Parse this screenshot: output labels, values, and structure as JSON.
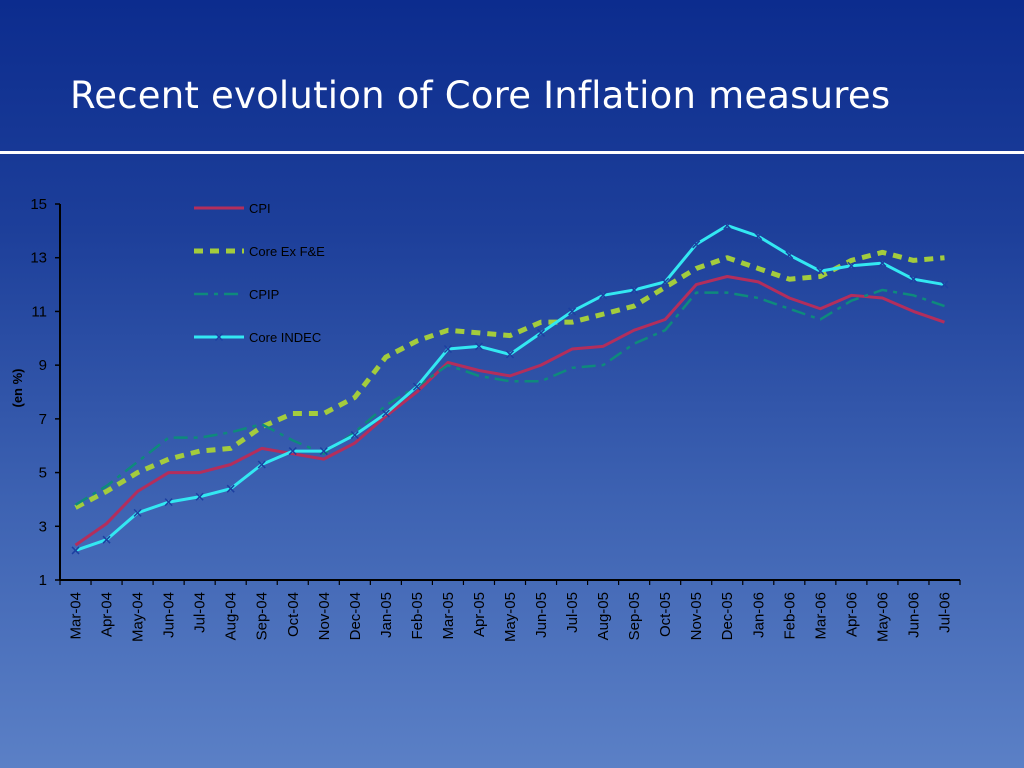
{
  "slide": {
    "title": "Recent evolution of Core Inflation measures"
  },
  "colors": {
    "cpi": "#b32e5c",
    "core_ex_fe": "#a3cc3d",
    "cpip": "#0e8a7c",
    "core_indec": "#33e8f2",
    "axis": "#000000"
  },
  "chart_data": {
    "type": "line",
    "title": "",
    "xlabel": "",
    "ylabel": "(en %)",
    "ylim": [
      1,
      15
    ],
    "yticks": [
      1,
      3,
      5,
      7,
      9,
      11,
      13,
      15
    ],
    "grid": false,
    "legend_position": "top-left inside plot",
    "categories": [
      "Mar-04",
      "Apr-04",
      "May-04",
      "Jun-04",
      "Jul-04",
      "Aug-04",
      "Sep-04",
      "Oct-04",
      "Nov-04",
      "Dec-04",
      "Jan-05",
      "Feb-05",
      "Mar-05",
      "Apr-05",
      "May-05",
      "Jun-05",
      "Jul-05",
      "Aug-05",
      "Sep-05",
      "Oct-05",
      "Nov-05",
      "Dec-05",
      "Jan-06",
      "Feb-06",
      "Mar-06",
      "Apr-06",
      "May-06",
      "Jun-06",
      "Jul-06"
    ],
    "series": [
      {
        "name": "CPI",
        "color": "#b32e5c",
        "style": "solid",
        "values": [
          2.3,
          3.1,
          4.3,
          5.0,
          5.0,
          5.3,
          5.9,
          5.7,
          5.5,
          6.1,
          7.1,
          8.0,
          9.1,
          8.8,
          8.6,
          9.0,
          9.6,
          9.7,
          10.3,
          10.7,
          12.0,
          12.3,
          12.1,
          11.5,
          11.1,
          11.6,
          11.5,
          11.0,
          10.6
        ]
      },
      {
        "name": "Core Ex F&E",
        "color": "#a3cc3d",
        "style": "dashed",
        "values": [
          3.7,
          4.3,
          5.0,
          5.5,
          5.8,
          5.9,
          6.7,
          7.2,
          7.2,
          7.8,
          9.3,
          9.9,
          10.3,
          10.2,
          10.1,
          10.6,
          10.6,
          10.9,
          11.2,
          11.9,
          12.6,
          13.0,
          12.6,
          12.2,
          12.3,
          12.9,
          13.2,
          12.9,
          13.0
        ]
      },
      {
        "name": "CPIP",
        "color": "#0e8a7c",
        "style": "dashdot",
        "values": [
          3.8,
          4.5,
          5.4,
          6.3,
          6.3,
          6.5,
          6.8,
          6.2,
          5.7,
          6.5,
          7.5,
          8.2,
          9.0,
          8.6,
          8.4,
          8.4,
          8.9,
          9.0,
          9.8,
          10.3,
          11.7,
          11.7,
          11.5,
          11.1,
          10.7,
          11.4,
          11.8,
          11.6,
          11.2
        ]
      },
      {
        "name": "Core INDEC",
        "color": "#33e8f2",
        "style": "solid-x-markers",
        "values": [
          2.1,
          2.5,
          3.5,
          3.9,
          4.1,
          4.4,
          5.3,
          5.8,
          5.8,
          6.4,
          7.2,
          8.2,
          9.6,
          9.7,
          9.4,
          10.2,
          11.0,
          11.6,
          11.8,
          12.1,
          13.5,
          14.2,
          13.8,
          13.1,
          12.5,
          12.7,
          12.8,
          12.2,
          12.0
        ]
      }
    ]
  }
}
